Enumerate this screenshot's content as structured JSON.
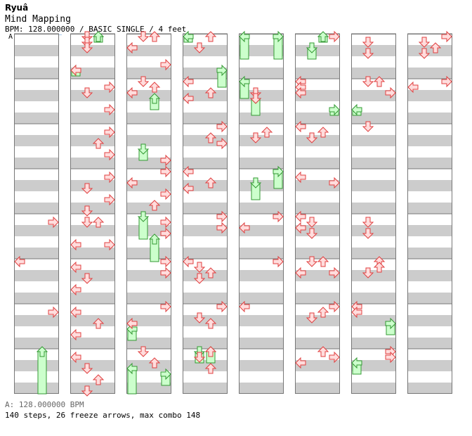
{
  "header": {
    "artist": "Ryuâ",
    "title": "Mind Mapping",
    "info": "BPM: 128.000000 / BASIC SINGLE / 4 feet",
    "bpm_marker": "A"
  },
  "footer": {
    "bpm_label": "A: 128.000000 BPM",
    "stats": "140 steps, 26 freeze arrows, max combo 148"
  },
  "colors": {
    "stripe": "#cccccc",
    "background": "#ffffff",
    "border": "#777777",
    "arrow_fill": "#ffdddd",
    "arrow_stroke": "#e04040",
    "freeze_fill": "#ccffcc",
    "freeze_stroke": "#339933"
  },
  "chart_data": {
    "type": "step-chart",
    "lanes": [
      "left",
      "down",
      "up",
      "right"
    ],
    "measures_per_column": 8,
    "beats_per_measure": 4,
    "rows_per_measure": 8,
    "notes": [
      {
        "c": 0,
        "m": 4,
        "r": 1,
        "l": 3
      },
      {
        "c": 0,
        "m": 5,
        "r": 0,
        "l": 0
      },
      {
        "c": 0,
        "m": 6,
        "r": 1,
        "l": 3
      },
      {
        "c": 1,
        "m": 0,
        "r": 0,
        "l": 1
      },
      {
        "c": 1,
        "m": 0,
        "r": 1,
        "l": 1
      },
      {
        "c": 1,
        "m": 0,
        "r": 2,
        "l": 1
      },
      {
        "c": 1,
        "m": 0,
        "r": 6,
        "l": 0
      },
      {
        "c": 1,
        "m": 1,
        "r": 1,
        "l": 3
      },
      {
        "c": 1,
        "m": 1,
        "r": 2,
        "l": 1
      },
      {
        "c": 1,
        "m": 1,
        "r": 5,
        "l": 3
      },
      {
        "c": 1,
        "m": 2,
        "r": 1,
        "l": 3
      },
      {
        "c": 1,
        "m": 2,
        "r": 3,
        "l": 2
      },
      {
        "c": 1,
        "m": 2,
        "r": 5,
        "l": 3
      },
      {
        "c": 1,
        "m": 3,
        "r": 1,
        "l": 3
      },
      {
        "c": 1,
        "m": 3,
        "r": 3,
        "l": 1
      },
      {
        "c": 1,
        "m": 3,
        "r": 5,
        "l": 3
      },
      {
        "c": 1,
        "m": 3,
        "r": 7,
        "l": 1
      },
      {
        "c": 1,
        "m": 4,
        "r": 1,
        "l": 1
      },
      {
        "c": 1,
        "m": 4,
        "r": 1,
        "l": 2
      },
      {
        "c": 1,
        "m": 4,
        "r": 5,
        "l": 0
      },
      {
        "c": 1,
        "m": 4,
        "r": 5,
        "l": 3
      },
      {
        "c": 1,
        "m": 5,
        "r": 1,
        "l": 0
      },
      {
        "c": 1,
        "m": 5,
        "r": 3,
        "l": 1
      },
      {
        "c": 1,
        "m": 5,
        "r": 5,
        "l": 0
      },
      {
        "c": 1,
        "m": 6,
        "r": 1,
        "l": 0
      },
      {
        "c": 1,
        "m": 6,
        "r": 3,
        "l": 2
      },
      {
        "c": 1,
        "m": 6,
        "r": 5,
        "l": 0
      },
      {
        "c": 1,
        "m": 7,
        "r": 1,
        "l": 0
      },
      {
        "c": 1,
        "m": 7,
        "r": 3,
        "l": 1
      },
      {
        "c": 1,
        "m": 7,
        "r": 5,
        "l": 2
      },
      {
        "c": 1,
        "m": 7,
        "r": 7,
        "l": 1
      },
      {
        "c": 2,
        "m": 0,
        "r": 0,
        "l": 1
      },
      {
        "c": 2,
        "m": 0,
        "r": 0,
        "l": 2
      },
      {
        "c": 2,
        "m": 0,
        "r": 2,
        "l": 0
      },
      {
        "c": 2,
        "m": 0,
        "r": 5,
        "l": 3
      },
      {
        "c": 2,
        "m": 1,
        "r": 0,
        "l": 1
      },
      {
        "c": 2,
        "m": 1,
        "r": 1,
        "l": 2
      },
      {
        "c": 2,
        "m": 1,
        "r": 2,
        "l": 0
      },
      {
        "c": 2,
        "m": 2,
        "r": 6,
        "l": 3
      },
      {
        "c": 2,
        "m": 3,
        "r": 0,
        "l": 3
      },
      {
        "c": 2,
        "m": 3,
        "r": 2,
        "l": 0
      },
      {
        "c": 2,
        "m": 3,
        "r": 4,
        "l": 3
      },
      {
        "c": 2,
        "m": 3,
        "r": 6,
        "l": 2
      },
      {
        "c": 2,
        "m": 4,
        "r": 1,
        "l": 3
      },
      {
        "c": 2,
        "m": 4,
        "r": 3,
        "l": 3
      },
      {
        "c": 2,
        "m": 5,
        "r": 0,
        "l": 3
      },
      {
        "c": 2,
        "m": 5,
        "r": 2,
        "l": 3
      },
      {
        "c": 2,
        "m": 6,
        "r": 0,
        "l": 3
      },
      {
        "c": 2,
        "m": 6,
        "r": 3,
        "l": 0
      },
      {
        "c": 2,
        "m": 7,
        "r": 0,
        "l": 1
      },
      {
        "c": 2,
        "m": 7,
        "r": 2,
        "l": 2
      },
      {
        "c": 3,
        "m": 0,
        "r": 0,
        "l": 2
      },
      {
        "c": 3,
        "m": 0,
        "r": 2,
        "l": 1
      },
      {
        "c": 3,
        "m": 1,
        "r": 0,
        "l": 0
      },
      {
        "c": 3,
        "m": 1,
        "r": 2,
        "l": 2
      },
      {
        "c": 3,
        "m": 1,
        "r": 3,
        "l": 0
      },
      {
        "c": 3,
        "m": 2,
        "r": 0,
        "l": 3
      },
      {
        "c": 3,
        "m": 2,
        "r": 2,
        "l": 2
      },
      {
        "c": 3,
        "m": 2,
        "r": 3,
        "l": 3
      },
      {
        "c": 3,
        "m": 3,
        "r": 0,
        "l": 0
      },
      {
        "c": 3,
        "m": 3,
        "r": 2,
        "l": 2
      },
      {
        "c": 3,
        "m": 3,
        "r": 3,
        "l": 0
      },
      {
        "c": 3,
        "m": 4,
        "r": 0,
        "l": 3
      },
      {
        "c": 3,
        "m": 4,
        "r": 2,
        "l": 3
      },
      {
        "c": 3,
        "m": 5,
        "r": 0,
        "l": 0
      },
      {
        "c": 3,
        "m": 5,
        "r": 1,
        "l": 1
      },
      {
        "c": 3,
        "m": 5,
        "r": 2,
        "l": 2
      },
      {
        "c": 3,
        "m": 5,
        "r": 3,
        "l": 1
      },
      {
        "c": 3,
        "m": 6,
        "r": 0,
        "l": 3
      },
      {
        "c": 3,
        "m": 6,
        "r": 2,
        "l": 1
      },
      {
        "c": 3,
        "m": 6,
        "r": 3,
        "l": 2
      },
      {
        "c": 3,
        "m": 7,
        "r": 0,
        "l": 2
      },
      {
        "c": 3,
        "m": 7,
        "r": 1,
        "l": 1
      },
      {
        "c": 3,
        "m": 7,
        "r": 3,
        "l": 2
      },
      {
        "c": 4,
        "m": 1,
        "r": 2,
        "l": 1
      },
      {
        "c": 4,
        "m": 1,
        "r": 3,
        "l": 1
      },
      {
        "c": 4,
        "m": 2,
        "r": 1,
        "l": 2
      },
      {
        "c": 4,
        "m": 2,
        "r": 2,
        "l": 1
      },
      {
        "c": 4,
        "m": 4,
        "r": 0,
        "l": 3
      },
      {
        "c": 4,
        "m": 4,
        "r": 2,
        "l": 0
      },
      {
        "c": 4,
        "m": 5,
        "r": 0,
        "l": 3
      },
      {
        "c": 4,
        "m": 6,
        "r": 0,
        "l": 0
      },
      {
        "c": 5,
        "m": 0,
        "r": 0,
        "l": 3
      },
      {
        "c": 5,
        "m": 1,
        "r": 0,
        "l": 0
      },
      {
        "c": 5,
        "m": 1,
        "r": 1,
        "l": 0
      },
      {
        "c": 5,
        "m": 1,
        "r": 2,
        "l": 0
      },
      {
        "c": 5,
        "m": 2,
        "r": 0,
        "l": 0
      },
      {
        "c": 5,
        "m": 2,
        "r": 1,
        "l": 2
      },
      {
        "c": 5,
        "m": 2,
        "r": 2,
        "l": 1
      },
      {
        "c": 5,
        "m": 3,
        "r": 1,
        "l": 0
      },
      {
        "c": 5,
        "m": 3,
        "r": 2,
        "l": 3
      },
      {
        "c": 5,
        "m": 4,
        "r": 0,
        "l": 0
      },
      {
        "c": 5,
        "m": 4,
        "r": 1,
        "l": 1
      },
      {
        "c": 5,
        "m": 4,
        "r": 2,
        "l": 0
      },
      {
        "c": 5,
        "m": 4,
        "r": 3,
        "l": 1
      },
      {
        "c": 5,
        "m": 5,
        "r": 0,
        "l": 1
      },
      {
        "c": 5,
        "m": 5,
        "r": 0,
        "l": 2
      },
      {
        "c": 5,
        "m": 5,
        "r": 2,
        "l": 0
      },
      {
        "c": 5,
        "m": 5,
        "r": 2,
        "l": 3
      },
      {
        "c": 5,
        "m": 6,
        "r": 0,
        "l": 3
      },
      {
        "c": 5,
        "m": 6,
        "r": 1,
        "l": 2
      },
      {
        "c": 5,
        "m": 6,
        "r": 2,
        "l": 1
      },
      {
        "c": 5,
        "m": 7,
        "r": 0,
        "l": 2
      },
      {
        "c": 5,
        "m": 7,
        "r": 1,
        "l": 3
      },
      {
        "c": 5,
        "m": 7,
        "r": 2,
        "l": 0
      },
      {
        "c": 6,
        "m": 0,
        "r": 1,
        "l": 1
      },
      {
        "c": 6,
        "m": 0,
        "r": 3,
        "l": 1
      },
      {
        "c": 6,
        "m": 1,
        "r": 0,
        "l": 1
      },
      {
        "c": 6,
        "m": 1,
        "r": 0,
        "l": 2
      },
      {
        "c": 6,
        "m": 1,
        "r": 2,
        "l": 3
      },
      {
        "c": 6,
        "m": 2,
        "r": 0,
        "l": 1
      },
      {
        "c": 6,
        "m": 4,
        "r": 1,
        "l": 1
      },
      {
        "c": 6,
        "m": 4,
        "r": 3,
        "l": 1
      },
      {
        "c": 6,
        "m": 5,
        "r": 0,
        "l": 2
      },
      {
        "c": 6,
        "m": 5,
        "r": 1,
        "l": 2
      },
      {
        "c": 6,
        "m": 5,
        "r": 2,
        "l": 1
      },
      {
        "c": 6,
        "m": 6,
        "r": 0,
        "l": 0
      },
      {
        "c": 6,
        "m": 6,
        "r": 1,
        "l": 0
      },
      {
        "c": 6,
        "m": 7,
        "r": 0,
        "l": 3
      },
      {
        "c": 6,
        "m": 7,
        "r": 1,
        "l": 3
      },
      {
        "c": 7,
        "m": 0,
        "r": 0,
        "l": 3
      },
      {
        "c": 7,
        "m": 0,
        "r": 1,
        "l": 1
      },
      {
        "c": 7,
        "m": 0,
        "r": 2,
        "l": 2
      },
      {
        "c": 7,
        "m": 0,
        "r": 3,
        "l": 1
      },
      {
        "c": 7,
        "m": 1,
        "r": 0,
        "l": 3
      },
      {
        "c": 7,
        "m": 1,
        "r": 1,
        "l": 0
      }
    ],
    "freezes": [
      {
        "c": 0,
        "m": 7,
        "r": 0,
        "l": 2,
        "len": 9
      },
      {
        "c": 1,
        "m": 0,
        "r": 0,
        "l": 2,
        "len": 1
      },
      {
        "c": 1,
        "m": 0,
        "r": 6,
        "l": 0,
        "len": 1
      },
      {
        "c": 2,
        "m": 1,
        "r": 3,
        "l": 2,
        "len": 2
      },
      {
        "c": 2,
        "m": 2,
        "r": 4,
        "l": 1,
        "len": 2
      },
      {
        "c": 2,
        "m": 4,
        "r": 0,
        "l": 1,
        "len": 4
      },
      {
        "c": 2,
        "m": 4,
        "r": 4,
        "l": 2,
        "len": 4
      },
      {
        "c": 2,
        "m": 6,
        "r": 4,
        "l": 0,
        "len": 2
      },
      {
        "c": 2,
        "m": 7,
        "r": 4,
        "l": 3,
        "len": 2
      },
      {
        "c": 2,
        "m": 7,
        "r": 3,
        "l": 0,
        "len": 5
      },
      {
        "c": 3,
        "m": 0,
        "r": 0,
        "l": 0,
        "len": 1
      },
      {
        "c": 3,
        "m": 0,
        "r": 6,
        "l": 3,
        "len": 3
      },
      {
        "c": 3,
        "m": 7,
        "r": 0,
        "l": 1,
        "len": 2
      },
      {
        "c": 3,
        "m": 7,
        "r": 0,
        "l": 2,
        "len": 2
      },
      {
        "c": 4,
        "m": 0,
        "r": 0,
        "l": 0,
        "len": 4
      },
      {
        "c": 4,
        "m": 0,
        "r": 0,
        "l": 3,
        "len": 4
      },
      {
        "c": 4,
        "m": 1,
        "r": 0,
        "l": 0,
        "len": 3
      },
      {
        "c": 4,
        "m": 1,
        "r": 3,
        "l": 1,
        "len": 3
      },
      {
        "c": 4,
        "m": 3,
        "r": 0,
        "l": 3,
        "len": 3
      },
      {
        "c": 4,
        "m": 3,
        "r": 2,
        "l": 1,
        "len": 3
      },
      {
        "c": 5,
        "m": 0,
        "r": 0,
        "l": 2,
        "len": 1
      },
      {
        "c": 5,
        "m": 0,
        "r": 2,
        "l": 1,
        "len": 2
      },
      {
        "c": 5,
        "m": 1,
        "r": 5,
        "l": 3,
        "len": 1
      },
      {
        "c": 6,
        "m": 1,
        "r": 5,
        "l": 0,
        "len": 1
      },
      {
        "c": 6,
        "m": 7,
        "r": 2,
        "l": 0,
        "len": 2
      },
      {
        "c": 6,
        "m": 6,
        "r": 3,
        "l": 3,
        "len": 2
      }
    ]
  }
}
